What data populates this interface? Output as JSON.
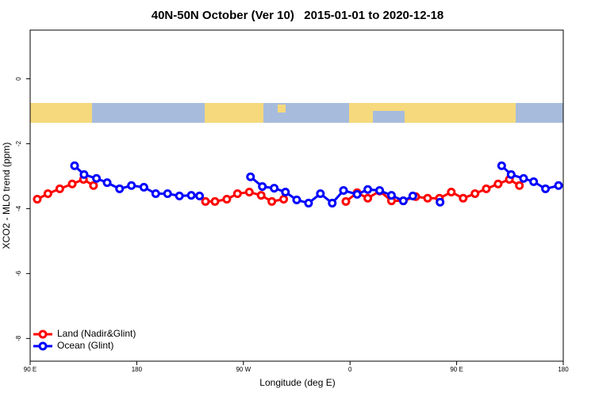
{
  "chart_data": {
    "type": "line",
    "title": "40N-50N October (Ver 10)   2015-01-01 to 2020-12-18",
    "x_label": "Longitude (deg E)",
    "y_label": "XCO2 - MLO trend (ppm)",
    "xlim": [
      90,
      540
    ],
    "ylim": [
      -8.7,
      1.5
    ],
    "xticks": [
      {
        "value": 90,
        "label": "90 E"
      },
      {
        "value": 180,
        "label": "180"
      },
      {
        "value": 270,
        "label": "90 W"
      },
      {
        "value": 360,
        "label": "0"
      },
      {
        "value": 450,
        "label": "90 E"
      },
      {
        "value": 540,
        "label": "180"
      }
    ],
    "yticks": [
      0,
      -2,
      -4,
      -6,
      -8
    ],
    "legend": "bottom-left",
    "series": [
      {
        "name": "Land (Nadir&Glint)",
        "color": "#ff0000",
        "x": [
          96,
          105,
          115,
          125.5,
          135,
          143.5,
          null,
          238,
          246,
          256,
          265,
          275,
          285,
          294,
          304,
          null,
          356.5,
          366,
          375,
          385,
          395,
          405,
          415.5,
          425.5,
          435.5,
          445.5,
          455.5,
          465.5,
          475,
          485,
          494.5,
          503
        ],
        "values": [
          -3.71,
          -3.54,
          -3.39,
          -3.24,
          -3.1,
          -3.29,
          null,
          -3.78,
          -3.78,
          -3.71,
          -3.54,
          -3.49,
          -3.59,
          -3.78,
          -3.71,
          null,
          -3.78,
          -3.51,
          -3.68,
          -3.46,
          -3.76,
          -3.76,
          -3.63,
          -3.68,
          -3.68,
          -3.49,
          -3.68,
          -3.54,
          -3.39,
          -3.24,
          -3.1,
          -3.29
        ]
      },
      {
        "name": "Ocean (Glint)",
        "color": "#0000ff",
        "x": [
          127.5,
          135.5,
          146,
          155,
          165.5,
          175.5,
          186,
          196,
          206,
          216,
          226,
          233,
          null,
          276,
          286,
          296,
          305.5,
          315,
          325,
          335,
          345,
          354.5,
          366,
          375,
          385,
          395,
          405,
          413,
          null,
          436,
          null,
          488,
          496,
          506.5,
          515,
          525,
          536
        ],
        "values": [
          -2.68,
          -2.95,
          -3.07,
          -3.2,
          -3.39,
          -3.29,
          -3.34,
          -3.54,
          -3.54,
          -3.61,
          -3.59,
          -3.61,
          null,
          -3.02,
          -3.32,
          -3.37,
          -3.49,
          -3.73,
          -3.83,
          -3.54,
          -3.83,
          -3.44,
          -3.56,
          -3.41,
          -3.44,
          -3.59,
          -3.76,
          -3.61,
          null,
          -3.8,
          null,
          -2.68,
          -2.95,
          -3.07,
          -3.17,
          -3.39,
          -3.29
        ]
      }
    ]
  }
}
